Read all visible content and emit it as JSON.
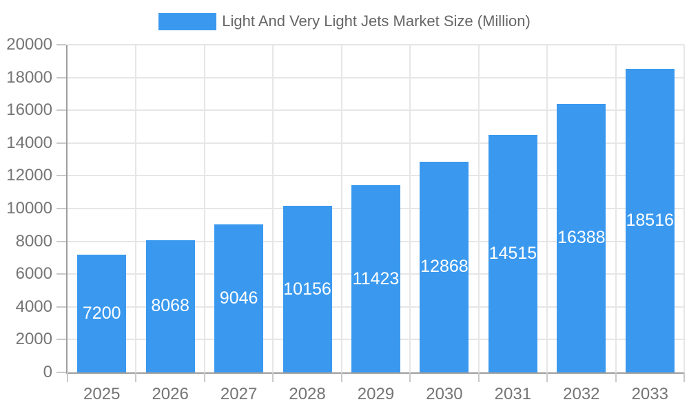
{
  "legend": {
    "label": "Light And Very Light Jets Market Size (Million)"
  },
  "colors": {
    "bar": "#3A99EF",
    "grid": "#E6E6E6",
    "axis": "#9E9E9E",
    "tick_mark": "#C9C9C9",
    "tick_text": "#757575",
    "legend_text": "#666666",
    "value_label_text": "#FFFFFF",
    "background": "#FFFFFF"
  },
  "chart_data": {
    "type": "bar",
    "title": "Light And Very Light Jets Market Size (Million)",
    "categories": [
      "2025",
      "2026",
      "2027",
      "2028",
      "2029",
      "2030",
      "2031",
      "2032",
      "2033"
    ],
    "values": [
      7200,
      8068,
      9046,
      10156,
      11423,
      12868,
      14515,
      16388,
      18516
    ],
    "xlabel": "",
    "ylabel": "",
    "ylim": [
      0,
      20000
    ],
    "yticks": [
      0,
      2000,
      4000,
      6000,
      8000,
      10000,
      12000,
      14000,
      16000,
      18000,
      20000
    ],
    "grid": true,
    "legend_position": "top",
    "value_label_position": "inside-center"
  }
}
